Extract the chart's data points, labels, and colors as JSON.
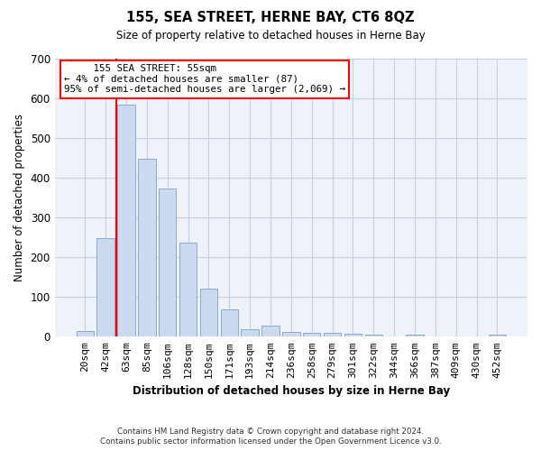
{
  "title": "155, SEA STREET, HERNE BAY, CT6 8QZ",
  "subtitle": "Size of property relative to detached houses in Herne Bay",
  "xlabel": "Distribution of detached houses by size in Herne Bay",
  "ylabel": "Number of detached properties",
  "bar_color": "#ccdaf0",
  "bar_edge_color": "#8aaad0",
  "categories": [
    "20sqm",
    "42sqm",
    "63sqm",
    "85sqm",
    "106sqm",
    "128sqm",
    "150sqm",
    "171sqm",
    "193sqm",
    "214sqm",
    "236sqm",
    "258sqm",
    "279sqm",
    "301sqm",
    "322sqm",
    "344sqm",
    "366sqm",
    "387sqm",
    "409sqm",
    "430sqm",
    "452sqm"
  ],
  "values": [
    15,
    248,
    585,
    448,
    372,
    237,
    120,
    68,
    18,
    28,
    12,
    10,
    9,
    8,
    5,
    0,
    5,
    0,
    0,
    0,
    5
  ],
  "ylim": [
    0,
    700
  ],
  "yticks": [
    0,
    100,
    200,
    300,
    400,
    500,
    600,
    700
  ],
  "red_line_x": 1.5,
  "annotation_title": "155 SEA STREET: 55sqm",
  "annotation_line1": "← 4% of detached houses are smaller (87)",
  "annotation_line2": "95% of semi-detached houses are larger (2,069) →",
  "footnote1": "Contains HM Land Registry data © Crown copyright and database right 2024.",
  "footnote2": "Contains public sector information licensed under the Open Government Licence v3.0.",
  "bg_color": "#eef2fb",
  "grid_color": "#c8d0e0"
}
